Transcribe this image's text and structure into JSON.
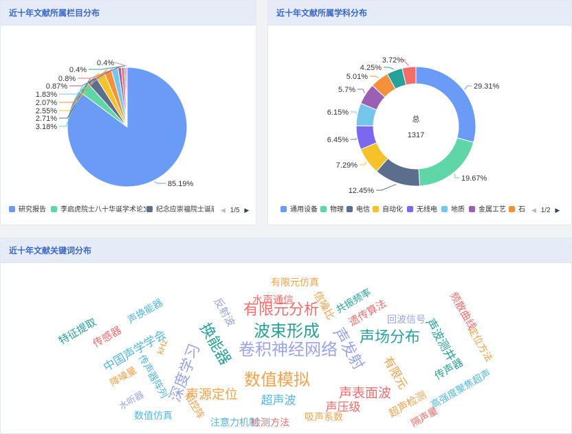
{
  "panel_category": {
    "title": "近十年文献所属栏目分布",
    "chart_data": {
      "type": "pie",
      "slices": [
        {
          "name": "研究报告",
          "value": 85.19,
          "label": "85.19%",
          "color": "#6a9cf7"
        },
        {
          "name": "李启虎院士八十华诞学术论文",
          "value": 3.18,
          "label": "3.18%",
          "color": "#5fd6a8"
        },
        {
          "name": "纪念应崇福院士诞辰",
          "value": 2.71,
          "label": "2.71%",
          "color": "#5c6e8e"
        },
        {
          "name": "",
          "value": 2.55,
          "label": "2.55%",
          "color": "#f5c22a"
        },
        {
          "name": "",
          "value": 2.07,
          "label": "2.07%",
          "color": "#f5903b"
        },
        {
          "name": "",
          "value": 1.83,
          "label": "1.83%",
          "color": "#74c7ea"
        },
        {
          "name": "",
          "value": 0.87,
          "label": "0.87%",
          "color": "#9a60b4"
        },
        {
          "name": "",
          "value": 0.8,
          "label": "0.8%",
          "color": "#f36d6d"
        },
        {
          "name": "",
          "value": 0.4,
          "label": "0.4%",
          "color": "#26a29a"
        },
        {
          "name": "",
          "value": 0.4,
          "label": "0.4%",
          "color": "#ea7ccc"
        }
      ]
    },
    "legend_items": [
      {
        "label": "研究报告",
        "color": "#6a9cf7"
      },
      {
        "label": "李启虎院士八十华诞学术论文",
        "color": "#5fd6a8"
      },
      {
        "label": "纪念应崇福院士诞辰",
        "color": "#5c6e8e"
      }
    ],
    "pager_text": "1/5"
  },
  "panel_subject": {
    "title": "近十年文献所属学科分布",
    "center_label": "总",
    "center_value": "1317",
    "chart_data": {
      "type": "pie",
      "variant": "donut",
      "slices": [
        {
          "name": "通用设备",
          "value": 29.31,
          "label": "29.31%",
          "color": "#6a9cf7"
        },
        {
          "name": "物理",
          "value": 19.67,
          "label": "19.67%",
          "color": "#5fd6a8"
        },
        {
          "name": "电信",
          "value": 12.45,
          "label": "12.45%",
          "color": "#5c6e8e"
        },
        {
          "name": "自动化",
          "value": 7.29,
          "label": "7.29%",
          "color": "#f5c22a"
        },
        {
          "name": "无线电",
          "value": 6.45,
          "label": "6.45%",
          "color": "#7b67f0"
        },
        {
          "name": "地质",
          "value": 6.15,
          "label": "6.15%",
          "color": "#74c7ea"
        },
        {
          "name": "金属工艺",
          "value": 5.7,
          "label": "5.7%",
          "color": "#9a60b4"
        },
        {
          "name": "",
          "value": 5.01,
          "label": "5.01%",
          "color": "#f5903b"
        },
        {
          "name": "",
          "value": 4.25,
          "label": "4.25%",
          "color": "#26a29a"
        },
        {
          "name": "",
          "value": 3.72,
          "label": "3.72%",
          "color": "#f36d6d"
        }
      ]
    },
    "legend_items": [
      {
        "label": "通用设备",
        "color": "#6a9cf7"
      },
      {
        "label": "物理",
        "color": "#5fd6a8"
      },
      {
        "label": "电信",
        "color": "#5c6e8e"
      },
      {
        "label": "自动化",
        "color": "#f5c22a"
      },
      {
        "label": "无线电",
        "color": "#7b67f0"
      },
      {
        "label": "地质",
        "color": "#74c7ea"
      },
      {
        "label": "金属工艺",
        "color": "#9a60b4"
      },
      {
        "label": "石",
        "color": "#f5903b"
      }
    ],
    "pager_text": "1/2"
  },
  "panel_keywords": {
    "title": "近十年文献关键词分布",
    "keywords": [
      {
        "text": "特征提取",
        "color": "#26a29a",
        "size": 15,
        "rotate": -30
      },
      {
        "text": "声换能器",
        "color": "#52b8e0",
        "size": 14,
        "rotate": -30
      },
      {
        "text": "传感器",
        "color": "#f36d6d",
        "size": 15,
        "rotate": -30
      },
      {
        "text": "中国声学学会",
        "color": "#52b8e0",
        "size": 17,
        "rotate": -30
      },
      {
        "text": "kHz",
        "color": "#f5a24b",
        "size": 13,
        "rotate": -70
      },
      {
        "text": "降噪量",
        "color": "#f5a24b",
        "size": 14,
        "rotate": -30
      },
      {
        "text": "传声器阵列",
        "color": "#52b8e0",
        "size": 14,
        "rotate": 60
      },
      {
        "text": "水听器",
        "color": "#9aa5e8",
        "size": 13,
        "rotate": -30
      },
      {
        "text": "深度学习",
        "color": "#9aa5e8",
        "size": 22,
        "rotate": -70
      },
      {
        "text": "换能器",
        "color": "#26a29a",
        "size": 22,
        "rotate": 60
      },
      {
        "text": "反射波",
        "color": "#9aa5e8",
        "size": 15,
        "rotate": 60
      },
      {
        "text": "声源定位",
        "color": "#f5a24b",
        "size": 19,
        "rotate": 0
      },
      {
        "text": "相控阵",
        "color": "#f5a24b",
        "size": 14,
        "rotate": 60
      },
      {
        "text": "数值仿真",
        "color": "#52b8e0",
        "size": 14,
        "rotate": 0
      },
      {
        "text": "注意力机制",
        "color": "#52b8e0",
        "size": 14,
        "rotate": 0
      },
      {
        "text": "水声通信",
        "color": "#f36d6d",
        "size": 15,
        "rotate": 0
      },
      {
        "text": "有限元仿真",
        "color": "#f5a24b",
        "size": 14,
        "rotate": 0
      },
      {
        "text": "有限元分析",
        "color": "#f36d6d",
        "size": 22,
        "rotate": 0
      },
      {
        "text": "卷积神经网络",
        "color": "#9aa5e8",
        "size": 24,
        "rotate": 0
      },
      {
        "text": "波束形成",
        "color": "#26a29a",
        "size": 24,
        "rotate": 0
      },
      {
        "text": "数值模拟",
        "color": "#f5a24b",
        "size": 24,
        "rotate": 0
      },
      {
        "text": "超声波",
        "color": "#52b8e0",
        "size": 17,
        "rotate": 0
      },
      {
        "text": "检测方法",
        "color": "#f36d6d",
        "size": 14,
        "rotate": 0
      },
      {
        "text": "信噪比",
        "color": "#f5a24b",
        "size": 15,
        "rotate": 60
      },
      {
        "text": "共振频率",
        "color": "#26a29a",
        "size": 14,
        "rotate": -30
      },
      {
        "text": "遗传算法",
        "color": "#f36d6d",
        "size": 15,
        "rotate": -30
      },
      {
        "text": "声发射",
        "color": "#9aa5e8",
        "size": 22,
        "rotate": 60
      },
      {
        "text": "回波信号",
        "color": "#9aa5e8",
        "size": 14,
        "rotate": 0
      },
      {
        "text": "声场分布",
        "color": "#26a29a",
        "size": 22,
        "rotate": 0
      },
      {
        "text": "声表面波",
        "color": "#f36d6d",
        "size": 19,
        "rotate": 0
      },
      {
        "text": "声压级",
        "color": "#f36d6d",
        "size": 17,
        "rotate": 0
      },
      {
        "text": "吸声系数",
        "color": "#f5a24b",
        "size": 14,
        "rotate": 0
      },
      {
        "text": "有限元",
        "color": "#f5a24b",
        "size": 17,
        "rotate": 60
      },
      {
        "text": "声波测井",
        "color": "#26a29a",
        "size": 17,
        "rotate": 60
      },
      {
        "text": "频散曲线",
        "color": "#f36d6d",
        "size": 15,
        "rotate": 60
      },
      {
        "text": "定位方法",
        "color": "#f5a24b",
        "size": 14,
        "rotate": 60
      },
      {
        "text": "传声器",
        "color": "#26a29a",
        "size": 15,
        "rotate": -30
      },
      {
        "text": "高强度聚焦超声",
        "color": "#52b8e0",
        "size": 14,
        "rotate": -30
      },
      {
        "text": "超声检测",
        "color": "#f5a24b",
        "size": 15,
        "rotate": -30
      },
      {
        "text": "隔声量",
        "color": "#f36d6d",
        "size": 14,
        "rotate": -30
      }
    ]
  }
}
